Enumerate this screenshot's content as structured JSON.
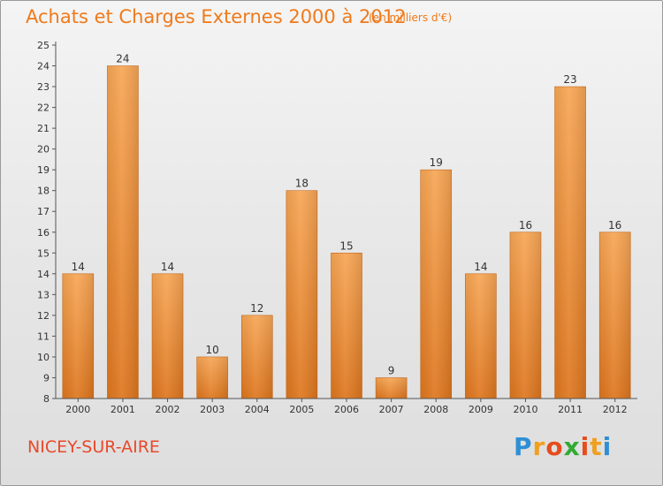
{
  "title": "Achats et Charges Externes 2000 à 2012",
  "subtitle": "(en milliers d'€)",
  "town": "NICEY-SUR-AIRE",
  "brand": {
    "letters": [
      "P",
      "r",
      "o",
      "x",
      "i",
      "t",
      "i"
    ],
    "colors": [
      "#2f8fd6",
      "#f0a020",
      "#e64c1c",
      "#33aa33",
      "#e64c1c",
      "#f0a020",
      "#2f8fd6"
    ]
  },
  "colors": {
    "bar_top": "#f7a655",
    "bar_bottom": "#de761e",
    "title": "#f07a1a",
    "town": "#e8492a"
  },
  "chart_data": {
    "type": "bar",
    "categories": [
      "2000",
      "2001",
      "2002",
      "2003",
      "2004",
      "2005",
      "2006",
      "2007",
      "2008",
      "2009",
      "2010",
      "2011",
      "2012"
    ],
    "values": [
      14,
      24,
      14,
      10,
      12,
      18,
      15,
      9,
      19,
      14,
      16,
      23,
      16
    ],
    "ylim": [
      8,
      25
    ],
    "yticks": [
      8,
      9,
      10,
      11,
      12,
      13,
      14,
      15,
      16,
      17,
      18,
      19,
      20,
      21,
      22,
      23,
      24,
      25
    ],
    "grid": false,
    "data_labels": true
  }
}
